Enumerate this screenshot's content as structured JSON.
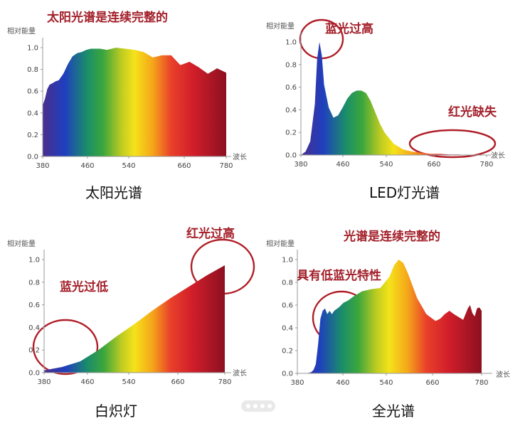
{
  "chart_data": [
    {
      "type": "area",
      "title": "太阳光谱是连续完整的",
      "caption": "太阳光谱",
      "ylabel": "相对能量",
      "xlabel": "波长",
      "x_ticks": [
        380,
        460,
        540,
        660,
        780
      ],
      "y_ticks": [
        "1.0",
        "0.8",
        "0.6",
        "0.4",
        "0.2",
        "0.0"
      ],
      "xlim": [
        380,
        780
      ],
      "ylim": [
        0,
        1.0
      ],
      "x": [
        380,
        385,
        390,
        395,
        400,
        408,
        415,
        425,
        435,
        445,
        455,
        465,
        475,
        485,
        495,
        505,
        520,
        540,
        560,
        580,
        600,
        620,
        640,
        660,
        680,
        700,
        720,
        740,
        760,
        770,
        780
      ],
      "values": [
        0.47,
        0.53,
        0.62,
        0.66,
        0.67,
        0.69,
        0.7,
        0.76,
        0.85,
        0.92,
        0.95,
        0.96,
        0.98,
        0.99,
        0.99,
        0.99,
        0.98,
        1.0,
        0.99,
        0.98,
        0.96,
        0.91,
        0.93,
        0.93,
        0.84,
        0.87,
        0.82,
        0.76,
        0.81,
        0.79,
        0.77
      ]
    },
    {
      "type": "area",
      "caption": "LED灯光谱",
      "ylabel": "相对能量",
      "xlabel": "波长",
      "x_ticks": [
        380,
        460,
        540,
        660,
        780
      ],
      "y_ticks": [
        "1.0",
        "0.8",
        "0.6",
        "0.4",
        "0.2",
        "0.0"
      ],
      "xlim": [
        380,
        780
      ],
      "ylim": [
        0,
        1.0
      ],
      "x": [
        380,
        390,
        400,
        410,
        415,
        420,
        425,
        430,
        440,
        450,
        460,
        470,
        480,
        490,
        500,
        510,
        520,
        530,
        540,
        550,
        560,
        580,
        600,
        620,
        640,
        660,
        680,
        700,
        720,
        740,
        760,
        780
      ],
      "values": [
        0.0,
        0.03,
        0.12,
        0.45,
        0.85,
        1.0,
        0.88,
        0.62,
        0.42,
        0.33,
        0.35,
        0.42,
        0.5,
        0.55,
        0.57,
        0.57,
        0.55,
        0.48,
        0.38,
        0.28,
        0.2,
        0.1,
        0.05,
        0.03,
        0.02,
        0.01,
        0.01,
        0.005,
        0.005,
        0.0,
        0.0,
        0.0
      ],
      "annotations": [
        "蓝光过高",
        "红光缺失"
      ]
    },
    {
      "type": "area",
      "caption": "白炽灯",
      "ylabel": "相对能量",
      "xlabel": "波长",
      "x_ticks": [
        380,
        460,
        540,
        660,
        780
      ],
      "y_ticks": [
        "1.0",
        "0.8",
        "0.6",
        "0.4",
        "0.2",
        "0.0"
      ],
      "xlim": [
        380,
        780
      ],
      "ylim": [
        0,
        1.0
      ],
      "x": [
        380,
        420,
        460,
        500,
        540,
        580,
        620,
        660,
        700,
        740,
        780
      ],
      "values": [
        0.02,
        0.05,
        0.1,
        0.2,
        0.32,
        0.43,
        0.55,
        0.66,
        0.76,
        0.86,
        0.95
      ],
      "annotations": [
        "蓝光过低",
        "红光过高"
      ]
    },
    {
      "type": "area",
      "title": "光谱是连续完整的",
      "caption": "全光谱",
      "ylabel": "相对能量",
      "xlabel": "波长",
      "x_ticks": [
        380,
        460,
        540,
        660,
        780
      ],
      "y_ticks": [
        "1.0",
        "0.8",
        "0.6",
        "0.4",
        "0.2",
        "0.0"
      ],
      "xlim": [
        380,
        780
      ],
      "ylim": [
        0,
        1.0
      ],
      "x": [
        380,
        400,
        410,
        415,
        420,
        425,
        430,
        435,
        440,
        445,
        450,
        455,
        460,
        470,
        480,
        490,
        500,
        520,
        540,
        560,
        580,
        590,
        600,
        610,
        620,
        640,
        660,
        680,
        690,
        700,
        710,
        720,
        740,
        750,
        755,
        760,
        765,
        770,
        775,
        780
      ],
      "values": [
        0.0,
        0.0,
        0.01,
        0.03,
        0.08,
        0.25,
        0.48,
        0.55,
        0.57,
        0.52,
        0.55,
        0.52,
        0.55,
        0.58,
        0.62,
        0.64,
        0.67,
        0.72,
        0.74,
        0.75,
        0.85,
        0.95,
        1.0,
        0.97,
        0.88,
        0.66,
        0.52,
        0.46,
        0.48,
        0.52,
        0.55,
        0.52,
        0.47,
        0.57,
        0.6,
        0.53,
        0.5,
        0.57,
        0.58,
        0.55
      ],
      "annotations": [
        "具有低蓝光特性"
      ]
    }
  ],
  "colors": {
    "annotation": "#a3202a",
    "spectrum": [
      "#4a2e8c",
      "#1f3fbf",
      "#1a8d6a",
      "#3ca63c",
      "#bfcc21",
      "#f5e21a",
      "#f5a51a",
      "#e9402a",
      "#d11e2a",
      "#8c1020"
    ]
  }
}
